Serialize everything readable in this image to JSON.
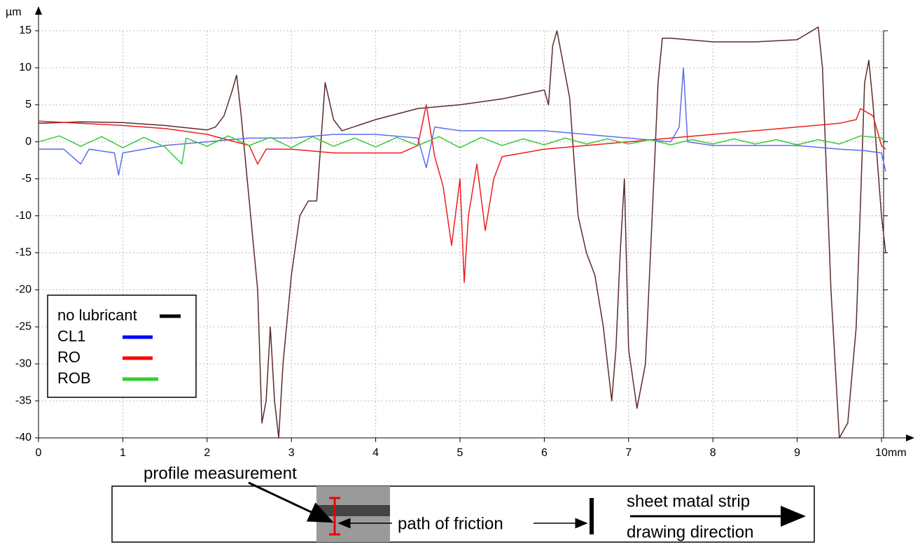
{
  "chart_data": {
    "type": "line",
    "y_unit": "µm",
    "x_unit": "mm",
    "xlim": [
      0,
      10
    ],
    "ylim": [
      -40,
      15
    ],
    "xticks": [
      0,
      1,
      2,
      3,
      4,
      5,
      6,
      7,
      8,
      9,
      10
    ],
    "yticks": [
      -40,
      -35,
      -30,
      -25,
      -20,
      -15,
      -10,
      -5,
      0,
      5,
      10,
      15
    ],
    "grid": true,
    "legend": "lower-left",
    "series": [
      {
        "name": "no lubricant",
        "color": "#5b2b2b",
        "legend_color": "#000000",
        "x": [
          0,
          0.5,
          1.0,
          1.5,
          2.0,
          2.1,
          2.2,
          2.3,
          2.35,
          2.4,
          2.5,
          2.6,
          2.65,
          2.7,
          2.75,
          2.8,
          2.85,
          2.9,
          3.0,
          3.1,
          3.2,
          3.3,
          3.4,
          3.5,
          3.6,
          4.0,
          4.5,
          5.0,
          5.5,
          6.0,
          6.05,
          6.1,
          6.15,
          6.2,
          6.3,
          6.4,
          6.5,
          6.6,
          6.7,
          6.8,
          6.85,
          6.9,
          6.95,
          7.0,
          7.1,
          7.2,
          7.3,
          7.35,
          7.4,
          7.5,
          8.0,
          8.5,
          9.0,
          9.25,
          9.3,
          9.4,
          9.5,
          9.6,
          9.7,
          9.8,
          9.85,
          9.9,
          10.0,
          10.05
        ],
        "values": [
          2.5,
          2.7,
          2.6,
          2.2,
          1.6,
          2.0,
          3.5,
          7,
          9,
          4,
          -8,
          -20,
          -38,
          -35,
          -25,
          -35,
          -40,
          -30,
          -18,
          -10,
          -8,
          -8,
          8,
          3,
          1.5,
          3,
          4.5,
          5,
          5.8,
          7,
          5,
          13,
          15,
          12,
          6,
          -10,
          -15,
          -18,
          -25,
          -35,
          -28,
          -15,
          -5,
          -28,
          -36,
          -30,
          -5,
          8,
          14,
          14,
          13.5,
          13.5,
          13.8,
          15.5,
          10,
          -20,
          -40,
          -38,
          -25,
          8,
          11,
          5,
          -10,
          -15
        ]
      },
      {
        "name": "CL1",
        "color": "#5b6df0",
        "legend_color": "#0000ff",
        "x": [
          0,
          0.3,
          0.5,
          0.6,
          0.9,
          0.95,
          1.0,
          1.5,
          2.0,
          2.5,
          3.0,
          3.5,
          4.0,
          4.5,
          4.6,
          4.7,
          5.0,
          5.5,
          6.0,
          6.5,
          7.0,
          7.5,
          7.6,
          7.65,
          7.7,
          8.0,
          8.5,
          9.0,
          9.5,
          9.8,
          10.0,
          10.05
        ],
        "values": [
          -1,
          -1,
          -3,
          -1,
          -1.5,
          -4.5,
          -1.5,
          -0.5,
          0,
          0.5,
          0.5,
          1,
          1,
          0.5,
          -3.5,
          2,
          1.5,
          1.5,
          1.5,
          1,
          0.5,
          0,
          2,
          10,
          0,
          -0.5,
          -0.5,
          -0.5,
          -1,
          -1.2,
          -1.5,
          -4
        ]
      },
      {
        "name": "RO",
        "color": "#ee1c1c",
        "legend_color": "#ff0000",
        "x": [
          0,
          0.5,
          1.0,
          1.5,
          2.0,
          2.5,
          2.6,
          2.7,
          3.0,
          3.5,
          4.0,
          4.3,
          4.5,
          4.6,
          4.7,
          4.8,
          4.9,
          5.0,
          5.05,
          5.1,
          5.2,
          5.3,
          5.4,
          5.5,
          6.0,
          6.5,
          7.0,
          7.5,
          8.0,
          8.5,
          9.0,
          9.5,
          9.7,
          9.75,
          9.9,
          10.0,
          10.05
        ],
        "values": [
          2.8,
          2.5,
          2.2,
          1.8,
          1,
          -0.5,
          -3,
          -1,
          -1,
          -1.5,
          -1.5,
          -1.5,
          -0.5,
          5,
          -2,
          -6,
          -14,
          -5,
          -19,
          -10,
          -3,
          -12,
          -5,
          -2,
          -1,
          -0.5,
          0,
          0.5,
          1,
          1.5,
          2,
          2.5,
          3,
          4.5,
          3.5,
          -0.5,
          -1
        ]
      },
      {
        "name": "ROB",
        "color": "#3cc83c",
        "legend_color": "#33cc33",
        "x": [
          0,
          0.25,
          0.5,
          0.75,
          1.0,
          1.25,
          1.5,
          1.7,
          1.75,
          2.0,
          2.25,
          2.5,
          2.75,
          3.0,
          3.25,
          3.5,
          3.75,
          4.0,
          4.25,
          4.5,
          4.75,
          5.0,
          5.25,
          5.5,
          5.75,
          6.0,
          6.25,
          6.5,
          6.75,
          7.0,
          7.25,
          7.5,
          7.75,
          8.0,
          8.25,
          8.5,
          8.75,
          9.0,
          9.25,
          9.5,
          9.75,
          10.0,
          10.05
        ],
        "values": [
          0,
          0.8,
          -0.6,
          0.7,
          -0.8,
          0.6,
          -0.7,
          -3,
          0.5,
          -0.6,
          0.8,
          -0.5,
          0.6,
          -0.8,
          0.7,
          -0.6,
          0.5,
          -0.7,
          0.6,
          -0.5,
          0.7,
          -0.8,
          0.6,
          -0.5,
          0.4,
          -0.4,
          0.5,
          -0.3,
          0.4,
          -0.3,
          0.3,
          -0.4,
          0.3,
          -0.3,
          0.4,
          -0.3,
          0.3,
          -0.4,
          0.3,
          -0.3,
          0.8,
          0.5,
          0
        ]
      }
    ]
  },
  "inset": {
    "profile_label": "profile measurement",
    "path_label": "path of friction",
    "strip_label": "sheet matal strip",
    "direction_label": "drawing direction"
  }
}
